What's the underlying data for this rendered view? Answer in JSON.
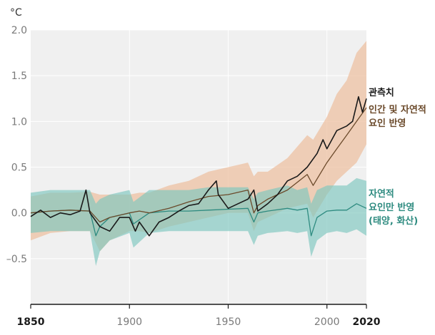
{
  "chart_data": {
    "type": "line",
    "unit_label": "°C",
    "xlim": [
      1850,
      2020
    ],
    "ylim": [
      -1.0,
      2.0
    ],
    "grid": true,
    "y_ticks": [
      {
        "value": 2.0,
        "label": "2.0"
      },
      {
        "value": 1.5,
        "label": "1.5"
      },
      {
        "value": 1.0,
        "label": "1.0"
      },
      {
        "value": 0.5,
        "label": "0.5"
      },
      {
        "value": 0.0,
        "label": "0.0"
      },
      {
        "value": -0.5,
        "label": "–0.5"
      }
    ],
    "x_ticks": [
      {
        "value": 1850,
        "label": "1850",
        "bold": true
      },
      {
        "value": 1900,
        "label": "1900",
        "bold": false
      },
      {
        "value": 1950,
        "label": "1950",
        "bold": false
      },
      {
        "value": 2000,
        "label": "2000",
        "bold": false
      },
      {
        "value": 2020,
        "label": "2020",
        "bold": true
      }
    ],
    "colors": {
      "observed": "#1a1a1a",
      "human_natural": "#6b4a2b",
      "human_natural_band": "#eec2a3",
      "natural": "#2e8b80",
      "natural_band": "#7cc6bf",
      "plot_bg": "#f0f0f0",
      "grid": "#ffffff"
    },
    "series": [
      {
        "name": "관측치",
        "key": "observed",
        "x": [
          1850,
          1855,
          1860,
          1865,
          1870,
          1875,
          1878,
          1880,
          1885,
          1890,
          1895,
          1900,
          1903,
          1905,
          1910,
          1915,
          1920,
          1925,
          1930,
          1935,
          1940,
          1944,
          1945,
          1950,
          1955,
          1960,
          1963,
          1965,
          1970,
          1975,
          1980,
          1985,
          1990,
          1995,
          1998,
          2000,
          2005,
          2010,
          2013,
          2016,
          2018,
          2020
        ],
        "y": [
          -0.04,
          0.03,
          -0.05,
          0.0,
          -0.02,
          0.02,
          0.25,
          0.0,
          -0.15,
          -0.2,
          -0.05,
          -0.05,
          -0.2,
          -0.1,
          -0.25,
          -0.1,
          -0.05,
          0.02,
          0.08,
          0.1,
          0.25,
          0.35,
          0.2,
          0.05,
          0.1,
          0.15,
          0.25,
          0.02,
          0.1,
          0.2,
          0.35,
          0.4,
          0.5,
          0.65,
          0.8,
          0.7,
          0.9,
          0.95,
          1.0,
          1.27,
          1.1,
          1.25
        ]
      },
      {
        "name": "인간 및 자연적 요인 반영",
        "key": "human_natural",
        "x": [
          1850,
          1860,
          1870,
          1880,
          1885,
          1890,
          1900,
          1905,
          1910,
          1920,
          1930,
          1940,
          1950,
          1960,
          1963,
          1965,
          1970,
          1980,
          1990,
          1993,
          2000,
          2005,
          2010,
          2015,
          2020
        ],
        "y": [
          0.0,
          0.02,
          0.03,
          0.02,
          -0.1,
          -0.05,
          0.0,
          0.02,
          0.0,
          0.05,
          0.12,
          0.18,
          0.2,
          0.25,
          0.0,
          0.08,
          0.15,
          0.25,
          0.42,
          0.3,
          0.55,
          0.7,
          0.85,
          1.0,
          1.15
        ],
        "band_upper": [
          0.18,
          0.22,
          0.22,
          0.23,
          0.2,
          0.2,
          0.2,
          0.22,
          0.22,
          0.3,
          0.35,
          0.45,
          0.5,
          0.55,
          0.4,
          0.45,
          0.45,
          0.6,
          0.85,
          0.8,
          1.05,
          1.3,
          1.45,
          1.75,
          1.88
        ],
        "band_lower": [
          -0.3,
          -0.22,
          -0.2,
          -0.2,
          -0.42,
          -0.3,
          -0.2,
          -0.2,
          -0.22,
          -0.15,
          -0.1,
          -0.05,
          0.0,
          0.0,
          -0.2,
          -0.1,
          -0.05,
          0.05,
          0.1,
          -0.05,
          0.2,
          0.35,
          0.45,
          0.55,
          0.75
        ]
      },
      {
        "name": "자연적 요인만 반영 (태양, 화산)",
        "key": "natural",
        "x": [
          1850,
          1860,
          1870,
          1880,
          1883,
          1885,
          1890,
          1900,
          1902,
          1910,
          1920,
          1930,
          1940,
          1950,
          1960,
          1963,
          1965,
          1970,
          1980,
          1985,
          1990,
          1992,
          1995,
          2000,
          2005,
          2010,
          2015,
          2020
        ],
        "y": [
          0.0,
          0.02,
          0.03,
          0.02,
          -0.25,
          -0.15,
          -0.05,
          0.0,
          -0.12,
          0.0,
          0.02,
          0.02,
          0.03,
          0.04,
          0.05,
          -0.1,
          0.0,
          0.02,
          0.05,
          0.03,
          0.05,
          -0.25,
          -0.05,
          0.02,
          0.03,
          0.03,
          0.1,
          0.05
        ],
        "band_upper": [
          0.22,
          0.25,
          0.25,
          0.25,
          0.1,
          0.15,
          0.2,
          0.25,
          0.12,
          0.25,
          0.25,
          0.25,
          0.28,
          0.28,
          0.28,
          0.15,
          0.22,
          0.25,
          0.3,
          0.25,
          0.28,
          0.1,
          0.25,
          0.3,
          0.3,
          0.3,
          0.38,
          0.35
        ],
        "band_lower": [
          -0.22,
          -0.2,
          -0.2,
          -0.2,
          -0.58,
          -0.42,
          -0.3,
          -0.22,
          -0.38,
          -0.22,
          -0.2,
          -0.2,
          -0.2,
          -0.2,
          -0.2,
          -0.35,
          -0.25,
          -0.22,
          -0.2,
          -0.22,
          -0.2,
          -0.48,
          -0.3,
          -0.22,
          -0.2,
          -0.22,
          -0.18,
          -0.25
        ]
      }
    ],
    "annotations": {
      "observed": [
        "관측치"
      ],
      "human_natural": [
        "인간 및 자연적",
        "요인 반영"
      ],
      "natural": [
        "자연적",
        "요인만 반영",
        "(태양, 화산)"
      ]
    }
  }
}
